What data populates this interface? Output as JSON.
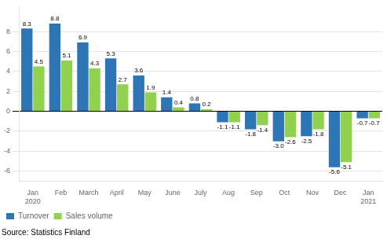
{
  "chart_data": {
    "type": "bar",
    "categories": [
      "Jan\n2020",
      "Feb",
      "March",
      "April",
      "May",
      "June",
      "July",
      "Aug",
      "Sep",
      "Oct",
      "Nov",
      "Dec",
      "Jan\n2021"
    ],
    "series": [
      {
        "name": "Turnover",
        "color": "#2E75B6",
        "values": [
          8.3,
          8.8,
          6.9,
          5.3,
          3.6,
          1.4,
          0.8,
          -1.1,
          -1.8,
          -3.0,
          -2.5,
          -5.6,
          -0.7
        ],
        "value_labels": [
          "8.3",
          "8.8",
          "6.9",
          "5.3",
          "3.6",
          "1.4",
          "0.8",
          "-1.1",
          "-1.8",
          "-3.0",
          "-2.5",
          "-5.6",
          "-0.7"
        ]
      },
      {
        "name": "Sales volume",
        "color": "#92D050",
        "values": [
          4.5,
          5.1,
          4.3,
          2.7,
          1.9,
          0.4,
          0.2,
          -1.1,
          -1.4,
          -2.6,
          -1.8,
          -5.1,
          -0.7
        ],
        "value_labels": [
          "4.5",
          "5.1",
          "4.3",
          "2.7",
          "1.9",
          "0.4",
          "0.2",
          "-1.1",
          "-1.4",
          "-2.6",
          "-1.8",
          "-5.1",
          "-0.7"
        ]
      }
    ],
    "ylim": [
      -7,
      10.5
    ],
    "yticks": [
      -6,
      -4,
      -2,
      0,
      2,
      4,
      6,
      8
    ],
    "grid": true,
    "legend": "lower left",
    "data_labels": true,
    "annotations": [
      "Source: Statistics Finland"
    ]
  }
}
